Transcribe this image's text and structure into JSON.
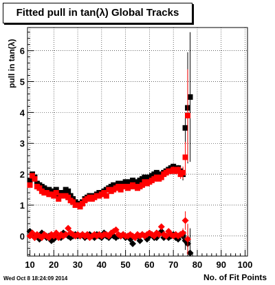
{
  "title": "Fitted pull in tan(λ)  Global Tracks",
  "timestamp": "Wed Oct  8 18:24:09 2014",
  "chart_data": {
    "type": "scatter",
    "title": "Fitted pull in tan(λ)  Global Tracks",
    "xlabel": "No. of Fit Points",
    "ylabel": "pull in tan(λ)",
    "xlim": [
      9,
      101
    ],
    "ylim": [
      -0.65,
      6.75
    ],
    "xticks": [
      10,
      20,
      30,
      40,
      50,
      60,
      70,
      80,
      90,
      100
    ],
    "yticks": [
      0,
      1,
      2,
      3,
      4,
      5,
      6
    ],
    "grid": true,
    "colors": {
      "black": "#000000",
      "red": "#ff0000"
    },
    "series": [
      {
        "marker": "square",
        "color": "#000000",
        "x": [
          10,
          11,
          12,
          13,
          14,
          15,
          16,
          17,
          18,
          19,
          20,
          21,
          22,
          23,
          24,
          25,
          26,
          27,
          28,
          29,
          30,
          31,
          32,
          33,
          34,
          35,
          36,
          37,
          38,
          39,
          40,
          41,
          42,
          43,
          44,
          45,
          46,
          47,
          48,
          49,
          50,
          51,
          52,
          53,
          54,
          55,
          56,
          57,
          58,
          59,
          60,
          61,
          62,
          63,
          64,
          65,
          66,
          67,
          68,
          69,
          70,
          71,
          72,
          73,
          74,
          75,
          76,
          77
        ],
        "y": [
          1.8,
          2.0,
          1.9,
          1.7,
          1.65,
          1.6,
          1.55,
          1.5,
          1.5,
          1.45,
          1.4,
          1.5,
          1.3,
          1.4,
          1.4,
          1.5,
          1.45,
          1.3,
          1.2,
          1.1,
          1.05,
          1.0,
          1.1,
          1.2,
          1.25,
          1.3,
          1.25,
          1.3,
          1.35,
          1.4,
          1.4,
          1.45,
          1.5,
          1.55,
          1.6,
          1.65,
          1.6,
          1.7,
          1.65,
          1.7,
          1.75,
          1.7,
          1.75,
          1.8,
          1.7,
          1.75,
          1.8,
          1.85,
          1.9,
          1.8,
          1.9,
          1.95,
          2.0,
          2.05,
          1.95,
          2.0,
          2.05,
          2.1,
          2.15,
          2.2,
          2.25,
          2.15,
          2.2,
          2.1,
          2.0,
          3.5,
          4.15,
          4.5
        ],
        "yerr": [
          0.05,
          0.05,
          0.05,
          0.05,
          0.05,
          0.05,
          0.05,
          0.05,
          0.05,
          0.05,
          0.05,
          0.05,
          0.05,
          0.05,
          0.05,
          0.05,
          0.05,
          0.05,
          0.05,
          0.05,
          0.05,
          0.05,
          0.05,
          0.05,
          0.05,
          0.05,
          0.05,
          0.05,
          0.05,
          0.05,
          0.05,
          0.05,
          0.05,
          0.05,
          0.05,
          0.05,
          0.05,
          0.05,
          0.05,
          0.05,
          0.05,
          0.05,
          0.05,
          0.05,
          0.05,
          0.05,
          0.05,
          0.05,
          0.05,
          0.05,
          0.05,
          0.05,
          0.05,
          0.05,
          0.05,
          0.05,
          0.05,
          0.05,
          0.05,
          0.1,
          0.1,
          0.1,
          0.1,
          0.15,
          0.2,
          0.5,
          1.8,
          2.1
        ]
      },
      {
        "marker": "square",
        "color": "#ff0000",
        "x": [
          10,
          11,
          12,
          13,
          14,
          15,
          16,
          17,
          18,
          19,
          20,
          21,
          22,
          23,
          24,
          25,
          26,
          27,
          28,
          29,
          30,
          31,
          32,
          33,
          34,
          35,
          36,
          37,
          38,
          39,
          40,
          41,
          42,
          43,
          44,
          45,
          46,
          47,
          48,
          49,
          50,
          51,
          52,
          53,
          54,
          55,
          56,
          57,
          58,
          59,
          60,
          61,
          62,
          63,
          64,
          65,
          66,
          67,
          68,
          69,
          70,
          71,
          72,
          73,
          74,
          75,
          76
        ],
        "y": [
          1.65,
          1.95,
          1.85,
          1.6,
          1.55,
          1.45,
          1.4,
          1.4,
          1.35,
          1.35,
          1.3,
          1.4,
          1.2,
          1.3,
          1.3,
          1.3,
          1.25,
          1.15,
          1.1,
          1.0,
          1.0,
          0.95,
          1.05,
          1.15,
          1.2,
          1.25,
          1.2,
          1.25,
          1.3,
          1.3,
          1.35,
          1.4,
          1.3,
          1.5,
          1.45,
          1.5,
          1.55,
          1.6,
          1.5,
          1.6,
          1.6,
          1.55,
          1.6,
          1.65,
          1.6,
          1.55,
          1.6,
          1.65,
          1.75,
          1.7,
          1.75,
          1.8,
          1.85,
          1.9,
          1.85,
          1.9,
          2.0,
          2.05,
          2.1,
          2.1,
          2.15,
          2.1,
          2.15,
          2.0,
          2.05,
          2.55,
          3.9
        ],
        "yerr": [
          0.05,
          0.05,
          0.05,
          0.05,
          0.05,
          0.05,
          0.05,
          0.05,
          0.05,
          0.05,
          0.05,
          0.05,
          0.05,
          0.05,
          0.05,
          0.05,
          0.05,
          0.05,
          0.05,
          0.05,
          0.05,
          0.05,
          0.05,
          0.05,
          0.05,
          0.05,
          0.05,
          0.05,
          0.05,
          0.05,
          0.05,
          0.05,
          0.05,
          0.05,
          0.05,
          0.05,
          0.05,
          0.05,
          0.05,
          0.05,
          0.05,
          0.05,
          0.05,
          0.05,
          0.05,
          0.05,
          0.05,
          0.05,
          0.05,
          0.05,
          0.05,
          0.05,
          0.05,
          0.05,
          0.05,
          0.05,
          0.05,
          0.05,
          0.05,
          0.1,
          0.1,
          0.1,
          0.1,
          0.15,
          0.2,
          0.5,
          1.5
        ]
      },
      {
        "marker": "diamond",
        "color": "#000000",
        "x": [
          10,
          11,
          12,
          13,
          14,
          15,
          16,
          17,
          18,
          19,
          20,
          21,
          22,
          23,
          24,
          25,
          26,
          27,
          28,
          29,
          30,
          31,
          32,
          33,
          34,
          35,
          36,
          37,
          38,
          39,
          40,
          41,
          42,
          43,
          44,
          45,
          46,
          47,
          48,
          49,
          50,
          51,
          52,
          53,
          54,
          55,
          56,
          57,
          58,
          59,
          60,
          61,
          62,
          63,
          64,
          65,
          66,
          67,
          68,
          69,
          70,
          71,
          72,
          73,
          74,
          75,
          76,
          77
        ],
        "y": [
          0.15,
          0.05,
          -0.05,
          0.0,
          -0.1,
          0.1,
          0.05,
          -0.05,
          0.0,
          -0.15,
          -0.1,
          0.05,
          0.0,
          -0.05,
          0.1,
          0.05,
          0.0,
          -0.05,
          0.0,
          0.05,
          0.0,
          0.0,
          0.05,
          -0.05,
          0.0,
          0.05,
          0.0,
          -0.05,
          0.05,
          0.0,
          -0.05,
          0.1,
          0.0,
          -0.05,
          0.05,
          0.0,
          -0.05,
          0.0,
          0.0,
          0.05,
          -0.05,
          0.0,
          -0.1,
          -0.25,
          -0.05,
          0.0,
          -0.15,
          0.05,
          0.0,
          -0.1,
          0.0,
          0.05,
          -0.05,
          -0.05,
          0.05,
          0.15,
          -0.05,
          0.0,
          -0.05,
          0.0,
          0.05,
          -0.05,
          -0.1,
          0.05,
          0.0,
          -0.15,
          -0.25,
          -0.55
        ],
        "yerr": [
          0.05,
          0.05,
          0.05,
          0.05,
          0.05,
          0.05,
          0.05,
          0.05,
          0.05,
          0.05,
          0.05,
          0.05,
          0.05,
          0.05,
          0.05,
          0.05,
          0.05,
          0.05,
          0.05,
          0.05,
          0.05,
          0.05,
          0.05,
          0.05,
          0.05,
          0.05,
          0.05,
          0.05,
          0.05,
          0.05,
          0.05,
          0.05,
          0.05,
          0.05,
          0.05,
          0.05,
          0.05,
          0.05,
          0.05,
          0.05,
          0.05,
          0.05,
          0.05,
          0.05,
          0.05,
          0.05,
          0.05,
          0.05,
          0.05,
          0.05,
          0.05,
          0.05,
          0.05,
          0.05,
          0.05,
          0.05,
          0.05,
          0.05,
          0.05,
          0.05,
          0.05,
          0.05,
          0.05,
          0.1,
          0.15,
          0.3,
          0.6,
          0.8
        ]
      },
      {
        "marker": "diamond",
        "color": "#ff0000",
        "x": [
          10,
          11,
          12,
          13,
          14,
          15,
          16,
          17,
          18,
          19,
          20,
          21,
          22,
          23,
          24,
          25,
          26,
          27,
          28,
          29,
          30,
          31,
          32,
          33,
          34,
          35,
          36,
          37,
          38,
          39,
          40,
          41,
          42,
          43,
          44,
          45,
          46,
          47,
          48,
          49,
          50,
          51,
          52,
          53,
          54,
          55,
          56,
          57,
          58,
          59,
          60,
          61,
          62,
          63,
          64,
          65,
          66,
          67,
          68,
          69,
          70,
          71,
          72,
          73,
          74,
          75,
          76
        ],
        "y": [
          0.0,
          0.1,
          -0.05,
          0.05,
          0.0,
          -0.05,
          0.05,
          0.0,
          -0.05,
          0.05,
          0.0,
          0.1,
          -0.05,
          0.05,
          0.0,
          0.05,
          0.25,
          0.1,
          0.05,
          0.0,
          0.05,
          0.0,
          0.05,
          0.0,
          0.05,
          -0.05,
          0.0,
          0.05,
          0.0,
          0.05,
          0.0,
          0.05,
          0.05,
          0.0,
          0.1,
          0.15,
          0.2,
          0.05,
          0.0,
          0.05,
          0.0,
          0.0,
          0.05,
          0.0,
          -0.05,
          0.05,
          0.0,
          0.05,
          0.0,
          0.05,
          0.1,
          0.05,
          0.0,
          0.1,
          0.05,
          0.3,
          0.05,
          0.0,
          0.15,
          0.05,
          0.0,
          0.05,
          0.0,
          0.05,
          0.1,
          0.5,
          -0.1
        ],
        "yerr": [
          0.05,
          0.05,
          0.05,
          0.05,
          0.05,
          0.05,
          0.05,
          0.05,
          0.05,
          0.05,
          0.05,
          0.05,
          0.05,
          0.05,
          0.05,
          0.05,
          0.05,
          0.05,
          0.05,
          0.05,
          0.05,
          0.05,
          0.05,
          0.05,
          0.05,
          0.05,
          0.05,
          0.05,
          0.05,
          0.05,
          0.05,
          0.05,
          0.05,
          0.05,
          0.05,
          0.05,
          0.05,
          0.05,
          0.05,
          0.05,
          0.05,
          0.05,
          0.05,
          0.05,
          0.05,
          0.05,
          0.05,
          0.05,
          0.05,
          0.05,
          0.05,
          0.05,
          0.05,
          0.05,
          0.05,
          0.05,
          0.05,
          0.05,
          0.05,
          0.05,
          0.05,
          0.05,
          0.05,
          0.1,
          0.15,
          0.3,
          0.5
        ]
      }
    ]
  }
}
